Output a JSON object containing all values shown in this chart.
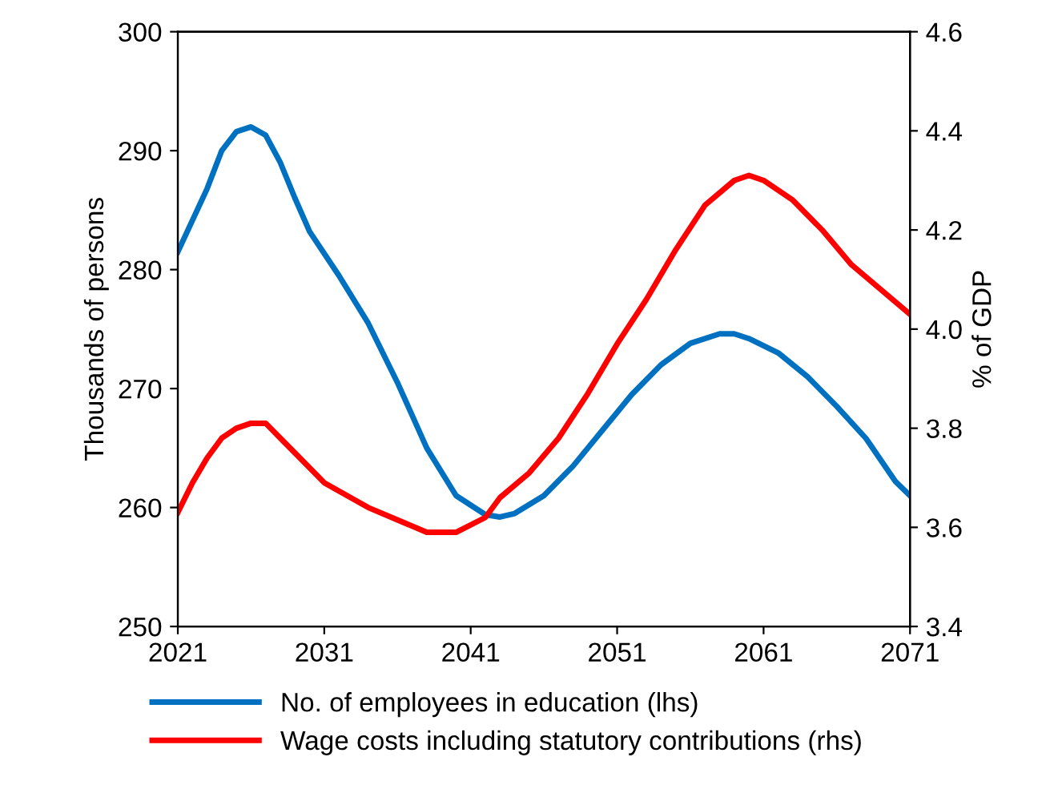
{
  "chart_data": {
    "type": "line",
    "ylabel": "Thousands of persons",
    "y2label": "% of GDP",
    "xlim": [
      2021,
      2071
    ],
    "xticks": [
      2021,
      2031,
      2041,
      2051,
      2061,
      2071
    ],
    "ylim": [
      250,
      300
    ],
    "yticks": [
      250,
      260,
      270,
      280,
      290,
      300
    ],
    "y2lim": [
      3.4,
      4.6
    ],
    "y2ticks": [
      {
        "value": 3.4,
        "label": "3.4"
      },
      {
        "value": 3.6,
        "label": "3.6"
      },
      {
        "value": 3.8,
        "label": "3.8"
      },
      {
        "value": 4.0,
        "label": "4.0"
      },
      {
        "value": 4.2,
        "label": "4.2"
      },
      {
        "value": 4.4,
        "label": "4.4"
      },
      {
        "value": 4.6,
        "label": "4.6"
      }
    ],
    "grid": false,
    "legend": "bottom",
    "marker": "none",
    "line_style": "solid",
    "series": [
      {
        "name": "No. of employees in education (lhs)",
        "color": "#0070c0",
        "x": [
          2021,
          2023,
          2024,
          2025,
          2026,
          2027,
          2028,
          2029,
          2030,
          2032,
          2034,
          2036,
          2038,
          2040,
          2042,
          2043,
          2044,
          2046,
          2048,
          2050,
          2052,
          2054,
          2056,
          2058,
          2059,
          2060,
          2062,
          2064,
          2066,
          2068,
          2070,
          2071
        ],
        "values": [
          281.5,
          286.8,
          290,
          291.6,
          292,
          291.3,
          289,
          286,
          283.2,
          279.5,
          275.5,
          270.5,
          265,
          261,
          259.4,
          259.2,
          259.5,
          261,
          263.5,
          266.5,
          269.5,
          272,
          273.8,
          274.6,
          274.6,
          274.2,
          273,
          271,
          268.5,
          265.8,
          262.2,
          261
        ]
      },
      {
        "name": "Wage costs including statutory contributions (rhs)",
        "color": "#ff0000",
        "axis": "y2",
        "x": [
          2021,
          2022,
          2023,
          2024,
          2025,
          2026,
          2027,
          2028,
          2029,
          2031,
          2034,
          2038,
          2040,
          2042,
          2043,
          2045,
          2047,
          2049,
          2051,
          2053,
          2055,
          2057,
          2059,
          2060,
          2061,
          2063,
          2065,
          2067,
          2069,
          2071
        ],
        "values": [
          3.63,
          3.69,
          3.74,
          3.78,
          3.8,
          3.81,
          3.81,
          3.78,
          3.75,
          3.69,
          3.64,
          3.59,
          3.59,
          3.62,
          3.66,
          3.71,
          3.78,
          3.87,
          3.97,
          4.06,
          4.16,
          4.25,
          4.3,
          4.31,
          4.3,
          4.26,
          4.2,
          4.13,
          4.08,
          4.03
        ]
      }
    ]
  }
}
